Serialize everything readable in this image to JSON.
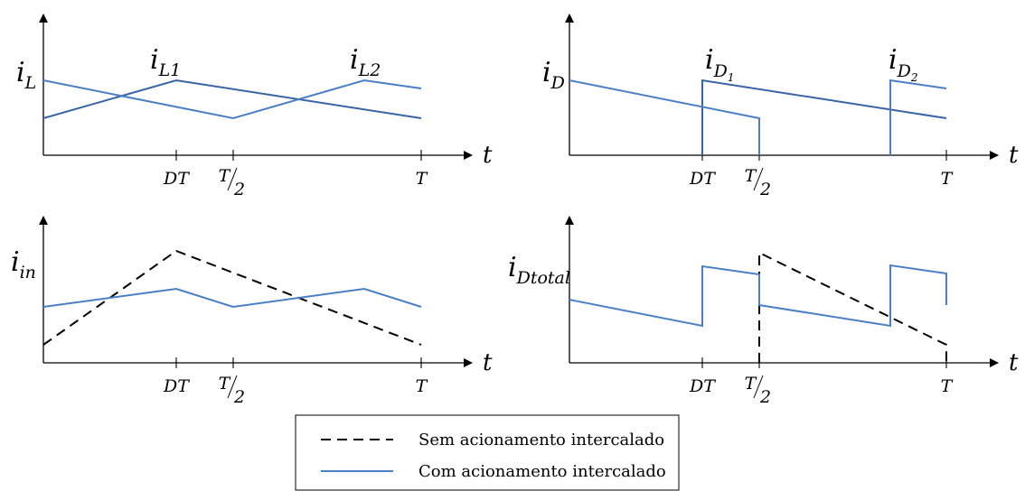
{
  "colors": {
    "solid": "#4a7fc8",
    "solid_dark": "#3764a6",
    "dashed": "#000000"
  },
  "panels": {
    "il": {
      "ylabel": "i",
      "ylabel_sub": "L",
      "tlabel": "t",
      "curve1": "i",
      "curve1_sub": "L1",
      "curve2": "i",
      "curve2_sub": "L2"
    },
    "id": {
      "ylabel": "i",
      "ylabel_sub": "D",
      "tlabel": "t",
      "curve1": "i",
      "curve1_sub": "D",
      "curve1_sub2": "1",
      "curve2": "i",
      "curve2_sub": "D",
      "curve2_sub2": "2"
    },
    "iin": {
      "ylabel": "i",
      "ylabel_sub": "in",
      "tlabel": "t"
    },
    "idt": {
      "ylabel": "i",
      "ylabel_sub": "Dtotal",
      "tlabel": "t"
    }
  },
  "ticks": {
    "dt": "DT",
    "half_num": "T",
    "half_den": "2",
    "t": "T"
  },
  "legend": {
    "items": [
      {
        "label": "Sem acionamento intercalado",
        "style": "dashed"
      },
      {
        "label": "Com acionamento intercalado",
        "style": "solid"
      }
    ]
  }
}
